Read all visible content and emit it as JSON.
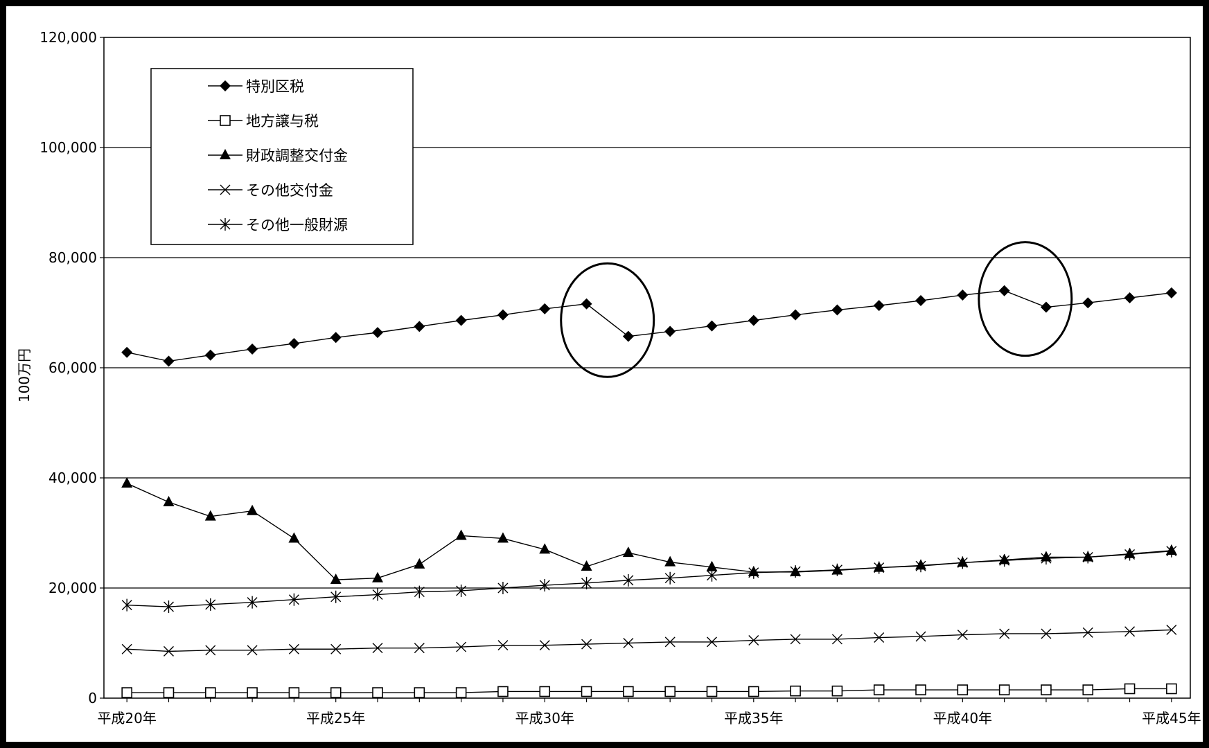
{
  "chart_data": {
    "type": "line",
    "title": "",
    "ylabel": "100万円",
    "xlabel": "",
    "ylim": [
      0,
      120000
    ],
    "yticks": [
      0,
      20000,
      40000,
      60000,
      80000,
      100000,
      120000
    ],
    "ytick_labels": [
      "0",
      "20,000",
      "40,000",
      "60,000",
      "80,000",
      "100,000",
      "120,000"
    ],
    "x": [
      20,
      21,
      22,
      23,
      24,
      25,
      26,
      27,
      28,
      29,
      30,
      31,
      32,
      33,
      34,
      35,
      36,
      37,
      38,
      39,
      40,
      41,
      42,
      43,
      44,
      45
    ],
    "xticks": [
      20,
      25,
      30,
      35,
      40,
      45
    ],
    "xtick_labels": [
      "平成20年",
      "平成25年",
      "平成30年",
      "平成35年",
      "平成40年",
      "平成45年"
    ],
    "grid": "horizontal",
    "legend_position": "top-left",
    "series": [
      {
        "name": "特別区税",
        "marker": "diamond",
        "values": [
          62800,
          61200,
          62300,
          63400,
          64400,
          65500,
          66400,
          67500,
          68600,
          69600,
          70700,
          71600,
          65700,
          66600,
          67600,
          68600,
          69600,
          70500,
          71300,
          72200,
          73200,
          74000,
          71000,
          71800,
          72700,
          73600
        ]
      },
      {
        "name": "地方譲与税",
        "marker": "square",
        "values": [
          1000,
          1000,
          1000,
          1000,
          1000,
          1000,
          1000,
          1000,
          1000,
          1200,
          1200,
          1200,
          1200,
          1200,
          1200,
          1200,
          1300,
          1300,
          1500,
          1500,
          1500,
          1500,
          1500,
          1500,
          1700,
          1700
        ]
      },
      {
        "name": "財政調整交付金",
        "marker": "triangle",
        "values": [
          39000,
          35600,
          33000,
          34000,
          29000,
          21500,
          21800,
          24300,
          29500,
          29000,
          27000,
          23900,
          26400,
          24700,
          23800,
          22900,
          22900,
          23200,
          23700,
          24100,
          24600,
          25100,
          25600,
          25600,
          26200,
          26800
        ]
      },
      {
        "name": "その他交付金",
        "marker": "x",
        "values": [
          8900,
          8500,
          8700,
          8700,
          8900,
          8900,
          9100,
          9100,
          9300,
          9600,
          9600,
          9800,
          10000,
          10200,
          10200,
          10500,
          10700,
          10700,
          11000,
          11200,
          11500,
          11700,
          11700,
          11900,
          12100,
          12400
        ]
      },
      {
        "name": "その他一般財源",
        "marker": "asterisk",
        "values": [
          16900,
          16600,
          17000,
          17400,
          17900,
          18400,
          18800,
          19300,
          19500,
          20000,
          20500,
          20900,
          21400,
          21800,
          22300,
          22800,
          23000,
          23300,
          23700,
          24000,
          24600,
          25000,
          25400,
          25600,
          26100,
          26700
        ]
      }
    ],
    "highlights": [
      {
        "marker": "ellipse",
        "x_from": 31,
        "x_to": 32
      },
      {
        "marker": "ellipse",
        "x_from": 41,
        "x_to": 42
      }
    ]
  }
}
